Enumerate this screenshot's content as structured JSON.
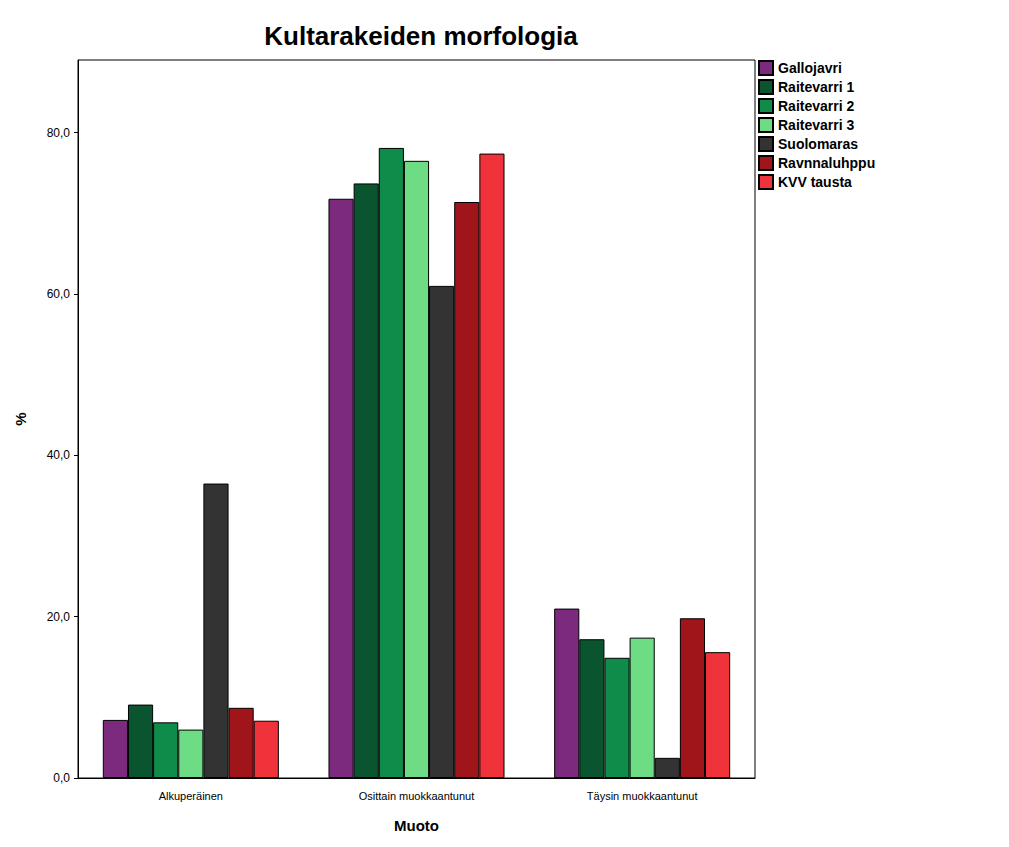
{
  "chart_data": {
    "type": "bar",
    "title": "Kultarakeiden morfologia",
    "x_label": "Muoto",
    "y_label": "%",
    "categories": [
      "Alkuperäinen",
      "Osittain muokkaantunut",
      "Täysin muokkaantunut"
    ],
    "series": [
      {
        "name": "Gallojavri",
        "color": "#7b2a7e",
        "values": [
          7.2,
          71.8,
          21.0
        ]
      },
      {
        "name": "Raitevarri 1",
        "color": "#0a5530",
        "values": [
          9.1,
          73.7,
          17.2
        ]
      },
      {
        "name": "Raitevarri 2",
        "color": "#0f8c4a",
        "values": [
          6.9,
          78.1,
          14.9
        ]
      },
      {
        "name": "Raitevarri 3",
        "color": "#6ddc84",
        "values": [
          6.0,
          76.5,
          17.4
        ]
      },
      {
        "name": "Suolomaras",
        "color": "#333333",
        "values": [
          36.5,
          61.0,
          2.5
        ]
      },
      {
        "name": "Ravnnaluhppu",
        "color": "#a0151a",
        "values": [
          8.7,
          71.4,
          19.8
        ]
      },
      {
        "name": "KVV tausta",
        "color": "#f0323a",
        "values": [
          7.1,
          77.4,
          15.6
        ]
      }
    ],
    "ylim": [
      0,
      89
    ],
    "yticks": [
      {
        "value": 0,
        "label": "0,0"
      },
      {
        "value": 20,
        "label": "20,0"
      },
      {
        "value": 40,
        "label": "40,0"
      },
      {
        "value": 60,
        "label": "60,0"
      },
      {
        "value": 80,
        "label": "80,0"
      }
    ],
    "grid": false,
    "legend": "top-right"
  }
}
